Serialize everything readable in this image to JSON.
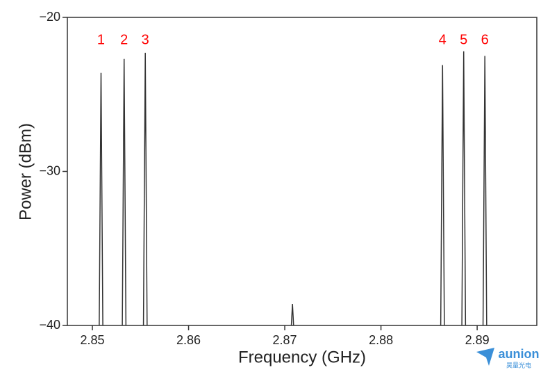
{
  "chart_data": {
    "type": "line",
    "x_label": "Frequency (GHz)",
    "y_label": "Power (dBm)",
    "x": [
      2.8507,
      2.8509,
      2.8511,
      2.8531,
      2.8533,
      2.8535,
      2.8553,
      2.8555,
      2.8557,
      2.8706,
      2.8708,
      2.871,
      2.8862,
      2.8864,
      2.8866,
      2.8884,
      2.8886,
      2.8888,
      2.8906,
      2.8908,
      2.891
    ],
    "values": [
      -41,
      -23.6,
      -41,
      -41,
      -22.7,
      -41,
      -41,
      -22.3,
      -41,
      -41,
      -38.6,
      -41,
      -41,
      -23.1,
      -41,
      -41,
      -22.2,
      -41,
      -41,
      -22.5,
      -41
    ],
    "color": "#333333",
    "xlim": [
      2.8474,
      2.8962
    ],
    "xticks": [
      2.85,
      2.86,
      2.87,
      2.88,
      2.89
    ],
    "ylim": [
      -40,
      -20
    ],
    "yticks": [
      {
        "value": -40,
        "label": "−40"
      },
      {
        "value": -30,
        "label": "−30"
      },
      {
        "value": -20,
        "label": "−20"
      }
    ],
    "annotations": [
      {
        "text": "1",
        "x": 2.8509,
        "y": -21.5
      },
      {
        "text": "2",
        "x": 2.8533,
        "y": -21.5
      },
      {
        "text": "3",
        "x": 2.8555,
        "y": -21.5
      },
      {
        "text": "4",
        "x": 2.8864,
        "y": -21.5
      },
      {
        "text": "5",
        "x": 2.8886,
        "y": -21.5
      },
      {
        "text": "6",
        "x": 2.8908,
        "y": -21.5
      }
    ],
    "annotation_color": "#ff0000"
  },
  "watermark": {
    "brand": "aunion",
    "subtitle": "昊量光电"
  }
}
